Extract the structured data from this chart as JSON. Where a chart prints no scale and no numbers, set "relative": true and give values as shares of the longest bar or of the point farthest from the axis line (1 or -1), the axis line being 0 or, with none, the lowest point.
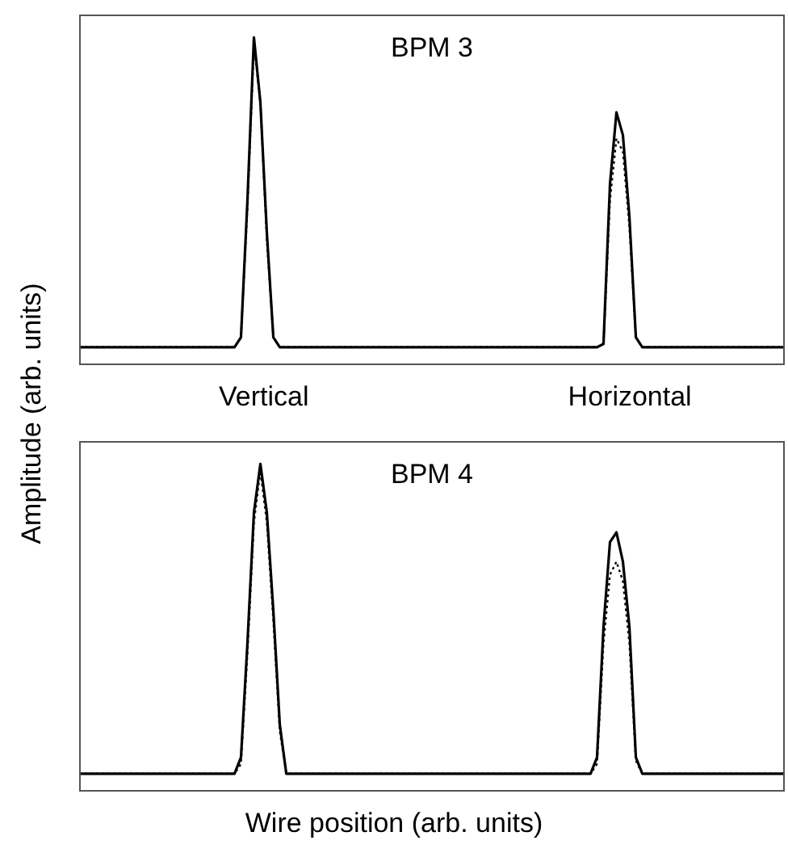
{
  "chart_data": [
    {
      "type": "line",
      "title": "BPM 3",
      "ylabel": "Amplitude (arb. units)",
      "relative": true,
      "legend": false,
      "marker": "none",
      "annotations": [
        "Vertical",
        "Horizontal"
      ],
      "categories": [
        null,
        null,
        null,
        null,
        null,
        null,
        null,
        null,
        null,
        null,
        null,
        null,
        null,
        null,
        null,
        null,
        null,
        null,
        null,
        null,
        null,
        null,
        null,
        null,
        null,
        null,
        null,
        null,
        null,
        null,
        null,
        null,
        null,
        null,
        null,
        null,
        null,
        null,
        null,
        null,
        null,
        null,
        null,
        null,
        null,
        null,
        null,
        null,
        null,
        null,
        null,
        null,
        null,
        null,
        null,
        null,
        null,
        null,
        null,
        null,
        null,
        null,
        null,
        null,
        null,
        null,
        null,
        null,
        null,
        null,
        null,
        null,
        null,
        null,
        null,
        null,
        null,
        null,
        null,
        null,
        null,
        null,
        null,
        null,
        null,
        null,
        null,
        null,
        null,
        null,
        null,
        null,
        null,
        null,
        null,
        null,
        null,
        null,
        null,
        null,
        null,
        null,
        null,
        null,
        null,
        null,
        null,
        null,
        null,
        null
      ],
      "series": [
        {
          "color": "#000000",
          "line_style": "solid",
          "values": [
            0.05,
            0.05,
            0.05,
            0.05,
            0.05,
            0.05,
            0.05,
            0.05,
            0.05,
            0.05,
            0.05,
            0.05,
            0.05,
            0.05,
            0.05,
            0.05,
            0.05,
            0.05,
            0.05,
            0.05,
            0.05,
            0.05,
            0.05,
            0.05,
            0.05,
            0.08,
            0.5,
            1,
            0.8,
            0.4,
            0.08,
            0.05,
            0.05,
            0.05,
            0.05,
            0.05,
            0.05,
            0.05,
            0.05,
            0.05,
            0.05,
            0.05,
            0.05,
            0.05,
            0.05,
            0.05,
            0.05,
            0.05,
            0.05,
            0.05,
            0.05,
            0.05,
            0.05,
            0.05,
            0.05,
            0.05,
            0.05,
            0.05,
            0.05,
            0.05,
            0.05,
            0.05,
            0.05,
            0.05,
            0.05,
            0.05,
            0.05,
            0.05,
            0.05,
            0.05,
            0.05,
            0.05,
            0.05,
            0.05,
            0.05,
            0.05,
            0.05,
            0.05,
            0.05,
            0.05,
            0.05,
            0.06,
            0.55,
            0.77,
            0.7,
            0.45,
            0.08,
            0.05,
            0.05,
            0.05,
            0.05,
            0.05,
            0.05,
            0.05,
            0.05,
            0.05,
            0.05,
            0.05,
            0.05,
            0.05,
            0.05,
            0.05,
            0.05,
            0.05,
            0.05,
            0.05,
            0.05,
            0.05,
            0.05,
            0.05
          ]
        },
        {
          "color": "#000000",
          "line_style": "dotted",
          "values": [
            0.05,
            0.05,
            0.05,
            0.05,
            0.05,
            0.05,
            0.05,
            0.05,
            0.05,
            0.05,
            0.05,
            0.05,
            0.05,
            0.05,
            0.05,
            0.05,
            0.05,
            0.05,
            0.05,
            0.05,
            0.05,
            0.05,
            0.05,
            0.05,
            0.05,
            0.08,
            0.48,
            0.98,
            0.8,
            0.38,
            0.08,
            0.05,
            0.05,
            0.05,
            0.05,
            0.05,
            0.05,
            0.05,
            0.05,
            0.05,
            0.05,
            0.05,
            0.05,
            0.05,
            0.05,
            0.05,
            0.05,
            0.05,
            0.05,
            0.05,
            0.05,
            0.05,
            0.05,
            0.05,
            0.05,
            0.05,
            0.05,
            0.05,
            0.05,
            0.05,
            0.05,
            0.05,
            0.05,
            0.05,
            0.05,
            0.05,
            0.05,
            0.05,
            0.05,
            0.05,
            0.05,
            0.05,
            0.05,
            0.05,
            0.05,
            0.05,
            0.05,
            0.05,
            0.05,
            0.05,
            0.05,
            0.06,
            0.5,
            0.69,
            0.65,
            0.42,
            0.08,
            0.05,
            0.05,
            0.05,
            0.05,
            0.05,
            0.05,
            0.05,
            0.05,
            0.05,
            0.05,
            0.05,
            0.05,
            0.05,
            0.05,
            0.05,
            0.05,
            0.05,
            0.05,
            0.05,
            0.05,
            0.05,
            0.05,
            0.05
          ]
        }
      ]
    },
    {
      "type": "line",
      "title": "BPM 4",
      "xlabel": "Wire position (arb. units)",
      "relative": true,
      "legend": false,
      "marker": "none",
      "categories": [
        null,
        null,
        null,
        null,
        null,
        null,
        null,
        null,
        null,
        null,
        null,
        null,
        null,
        null,
        null,
        null,
        null,
        null,
        null,
        null,
        null,
        null,
        null,
        null,
        null,
        null,
        null,
        null,
        null,
        null,
        null,
        null,
        null,
        null,
        null,
        null,
        null,
        null,
        null,
        null,
        null,
        null,
        null,
        null,
        null,
        null,
        null,
        null,
        null,
        null,
        null,
        null,
        null,
        null,
        null,
        null,
        null,
        null,
        null,
        null,
        null,
        null,
        null,
        null,
        null,
        null,
        null,
        null,
        null,
        null,
        null,
        null,
        null,
        null,
        null,
        null,
        null,
        null,
        null,
        null,
        null,
        null,
        null,
        null,
        null,
        null,
        null,
        null,
        null,
        null,
        null,
        null,
        null,
        null,
        null,
        null,
        null,
        null,
        null,
        null,
        null,
        null,
        null,
        null,
        null,
        null,
        null,
        null,
        null,
        null
      ],
      "series": [
        {
          "color": "#000000",
          "line_style": "solid",
          "values": [
            0.05,
            0.05,
            0.05,
            0.05,
            0.05,
            0.05,
            0.05,
            0.05,
            0.05,
            0.05,
            0.05,
            0.05,
            0.05,
            0.05,
            0.05,
            0.05,
            0.05,
            0.05,
            0.05,
            0.05,
            0.05,
            0.05,
            0.05,
            0.05,
            0.05,
            0.1,
            0.45,
            0.85,
            1,
            0.85,
            0.55,
            0.2,
            0.05,
            0.05,
            0.05,
            0.05,
            0.05,
            0.05,
            0.05,
            0.05,
            0.05,
            0.05,
            0.05,
            0.05,
            0.05,
            0.05,
            0.05,
            0.05,
            0.05,
            0.05,
            0.05,
            0.05,
            0.05,
            0.05,
            0.05,
            0.05,
            0.05,
            0.05,
            0.05,
            0.05,
            0.05,
            0.05,
            0.05,
            0.05,
            0.05,
            0.05,
            0.05,
            0.05,
            0.05,
            0.05,
            0.05,
            0.05,
            0.05,
            0.05,
            0.05,
            0.05,
            0.05,
            0.05,
            0.05,
            0.05,
            0.1,
            0.5,
            0.76,
            0.79,
            0.7,
            0.5,
            0.1,
            0.05,
            0.05,
            0.05,
            0.05,
            0.05,
            0.05,
            0.05,
            0.05,
            0.05,
            0.05,
            0.05,
            0.05,
            0.05,
            0.05,
            0.05,
            0.05,
            0.05,
            0.05,
            0.05,
            0.05,
            0.05,
            0.05,
            0.05
          ]
        },
        {
          "color": "#000000",
          "line_style": "dotted",
          "values": [
            0.05,
            0.05,
            0.05,
            0.05,
            0.05,
            0.05,
            0.05,
            0.05,
            0.05,
            0.05,
            0.05,
            0.05,
            0.05,
            0.05,
            0.05,
            0.05,
            0.05,
            0.05,
            0.05,
            0.05,
            0.05,
            0.05,
            0.05,
            0.05,
            0.05,
            0.08,
            0.42,
            0.82,
            0.98,
            0.82,
            0.52,
            0.18,
            0.05,
            0.05,
            0.05,
            0.05,
            0.05,
            0.05,
            0.05,
            0.05,
            0.05,
            0.05,
            0.05,
            0.05,
            0.05,
            0.05,
            0.05,
            0.05,
            0.05,
            0.05,
            0.05,
            0.05,
            0.05,
            0.05,
            0.05,
            0.05,
            0.05,
            0.05,
            0.05,
            0.05,
            0.05,
            0.05,
            0.05,
            0.05,
            0.05,
            0.05,
            0.05,
            0.05,
            0.05,
            0.05,
            0.05,
            0.05,
            0.05,
            0.05,
            0.05,
            0.05,
            0.05,
            0.05,
            0.05,
            0.05,
            0.08,
            0.45,
            0.66,
            0.7,
            0.64,
            0.45,
            0.09,
            0.05,
            0.05,
            0.05,
            0.05,
            0.05,
            0.05,
            0.05,
            0.05,
            0.05,
            0.05,
            0.05,
            0.05,
            0.05,
            0.05,
            0.05,
            0.05,
            0.05,
            0.05,
            0.05,
            0.05,
            0.05,
            0.05,
            0.05
          ]
        }
      ]
    }
  ]
}
